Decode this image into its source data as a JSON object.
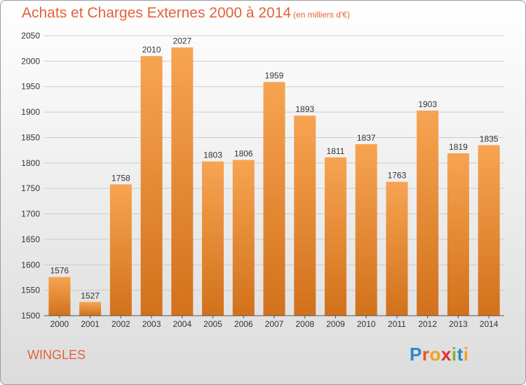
{
  "header": {
    "title": "Achats et Charges Externes 2000 à 2014",
    "subtitle": "(en milliers d'€)"
  },
  "footer": {
    "city": "WINGLES",
    "logo_letters": [
      "P",
      "r",
      "o",
      "x",
      "i",
      "t",
      "i"
    ]
  },
  "colors": {
    "bar_top": "#f7a452",
    "bar_bottom": "#d2711b",
    "grid": "#cccccc",
    "title": "#e0633a"
  },
  "chart_data": {
    "type": "bar",
    "title": "Achats et Charges Externes 2000 à 2014",
    "xlabel": "",
    "ylabel": "",
    "categories": [
      "2000",
      "2001",
      "2002",
      "2003",
      "2004",
      "2005",
      "2006",
      "2007",
      "2008",
      "2009",
      "2010",
      "2011",
      "2012",
      "2013",
      "2014"
    ],
    "values": [
      1576,
      1527,
      1758,
      2010,
      2027,
      1803,
      1806,
      1959,
      1893,
      1811,
      1837,
      1763,
      1903,
      1819,
      1835
    ],
    "ylim": [
      1500,
      2050
    ],
    "yticks": [
      1500,
      1550,
      1600,
      1650,
      1700,
      1750,
      1800,
      1850,
      1900,
      1950,
      2000,
      2050
    ],
    "grid": true,
    "data_labels": true
  }
}
